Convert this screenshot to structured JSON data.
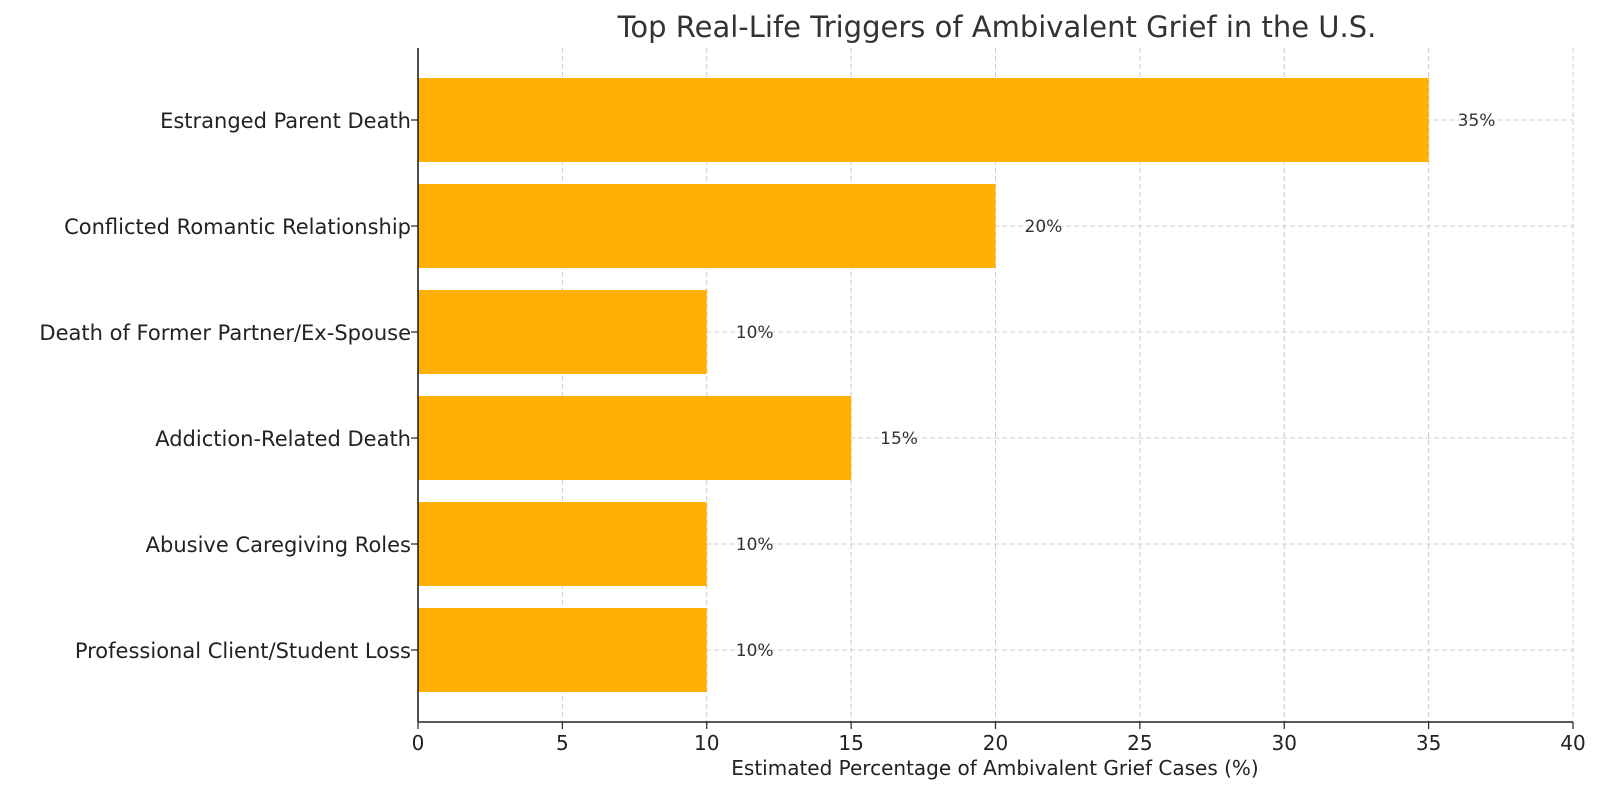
{
  "chart_data": {
    "type": "bar",
    "orientation": "horizontal",
    "title": "Top Real-Life Triggers of Ambivalent Grief in the U.S.",
    "xlabel": "Estimated Percentage of Ambivalent Grief Cases (%)",
    "ylabel": "",
    "categories": [
      "Estranged Parent Death",
      "Conflicted Romantic Relationship",
      "Death of Former Partner/Ex-Spouse",
      "Addiction-Related Death",
      "Abusive Caregiving Roles",
      "Professional Client/Student Loss"
    ],
    "values": [
      35,
      20,
      10,
      15,
      10,
      10
    ],
    "data_labels": [
      "35%",
      "20%",
      "10%",
      "15%",
      "10%",
      "10%"
    ],
    "xlim": [
      0,
      40
    ],
    "x_ticks": [
      0,
      5,
      10,
      15,
      20,
      25,
      30,
      35,
      40
    ],
    "x_tick_labels": [
      "0",
      "5",
      "10",
      "15",
      "20",
      "25",
      "30",
      "35",
      "40"
    ],
    "grid": true,
    "bar_color": "#ffb000"
  }
}
